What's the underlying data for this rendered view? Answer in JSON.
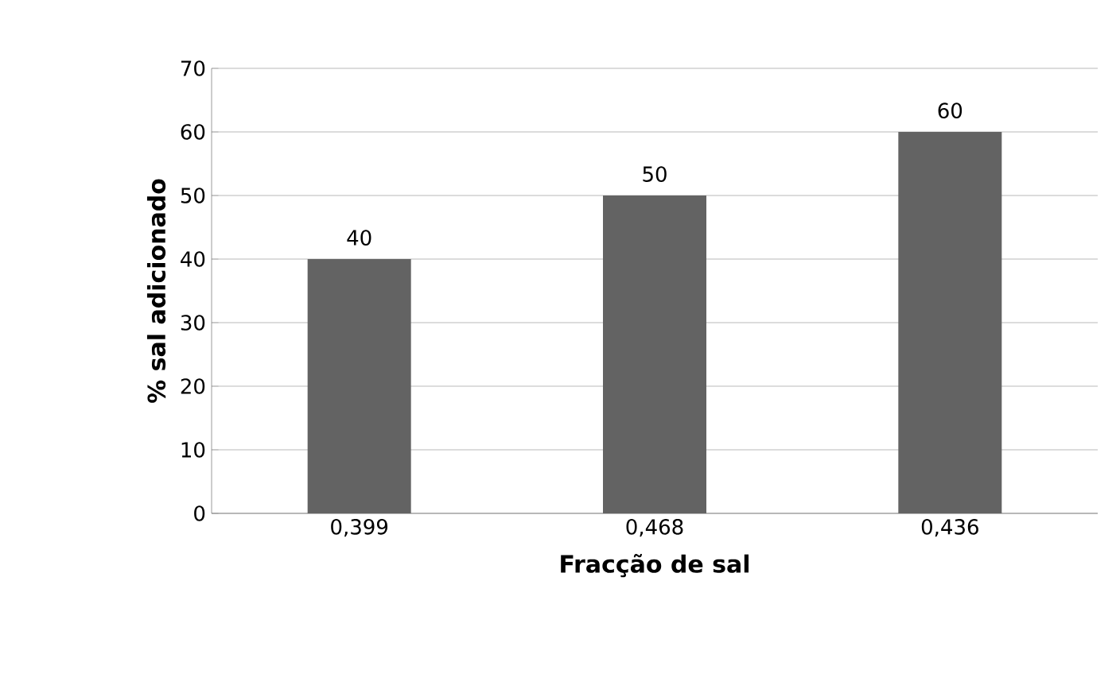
{
  "chart_data": {
    "type": "bar",
    "xlabel": "Fracção de sal",
    "ylabel": "% sal adicionado",
    "categories": [
      "0,399",
      "0,468",
      "0,436"
    ],
    "values": [
      40,
      50,
      60
    ],
    "color": "#636363",
    "ylim": [
      0,
      70
    ],
    "yticks": [
      0,
      10,
      20,
      30,
      40,
      50,
      60,
      70
    ],
    "grid": "y",
    "data_labels": true
  }
}
